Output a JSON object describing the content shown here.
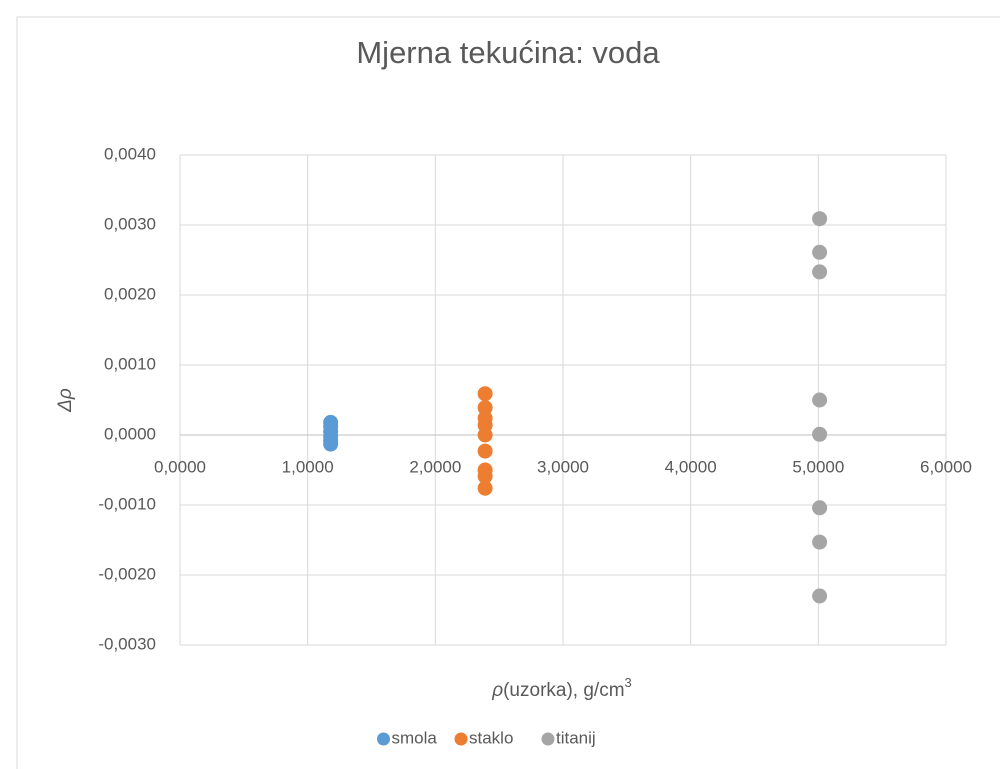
{
  "chart_data": {
    "type": "scatter",
    "title": "Mjerna tekućina: voda",
    "x_label": [
      "ρ",
      "(uzorka), g/cm",
      "3"
    ],
    "y_label": "Δρ",
    "xlim": [
      0,
      6
    ],
    "ylim": [
      -0.003,
      0.004
    ],
    "xticks": [
      {
        "value": 0,
        "label": "0,0000"
      },
      {
        "value": 1,
        "label": "1,0000"
      },
      {
        "value": 2,
        "label": "2,0000"
      },
      {
        "value": 3,
        "label": "3,0000"
      },
      {
        "value": 4,
        "label": "4,0000"
      },
      {
        "value": 5,
        "label": "5,0000"
      },
      {
        "value": 6,
        "label": "6,0000"
      }
    ],
    "yticks": [
      {
        "value": -0.003,
        "label": "-0,0030"
      },
      {
        "value": -0.002,
        "label": "-0,0020"
      },
      {
        "value": -0.001,
        "label": "-0,0010"
      },
      {
        "value": 0,
        "label": "0,0000"
      },
      {
        "value": 0.001,
        "label": "0,0010"
      },
      {
        "value": 0.002,
        "label": "0,0020"
      },
      {
        "value": 0.003,
        "label": "0,0030"
      },
      {
        "value": 0.004,
        "label": "0,0040"
      }
    ],
    "grid": true,
    "legend": "bottom",
    "series": [
      {
        "name": "smola",
        "color": "#5b9bd5",
        "x": [
          1.18,
          1.18,
          1.18,
          1.18,
          1.18,
          1.18
        ],
        "values": [
          0.00018,
          0.00012,
          5e-05,
          -2e-05,
          -8e-05,
          -0.00013
        ]
      },
      {
        "name": "staklo",
        "color": "#ed7d31",
        "x": [
          2.39,
          2.39,
          2.39,
          2.39,
          2.39,
          2.39,
          2.39,
          2.39,
          2.39
        ],
        "values": [
          0.00059,
          0.00039,
          0.00024,
          0.00014,
          0,
          -0.00023,
          -0.0005,
          -0.00059,
          -0.00076
        ]
      },
      {
        "name": "titanij",
        "color": "#a5a5a5",
        "x": [
          5.01,
          5.01,
          5.01,
          5.01,
          5.01,
          5.01,
          5.01,
          5.01
        ],
        "values": [
          0.00309,
          0.00261,
          0.00233,
          0.0005,
          1e-05,
          -0.00104,
          -0.00153,
          -0.0023
        ]
      }
    ]
  }
}
